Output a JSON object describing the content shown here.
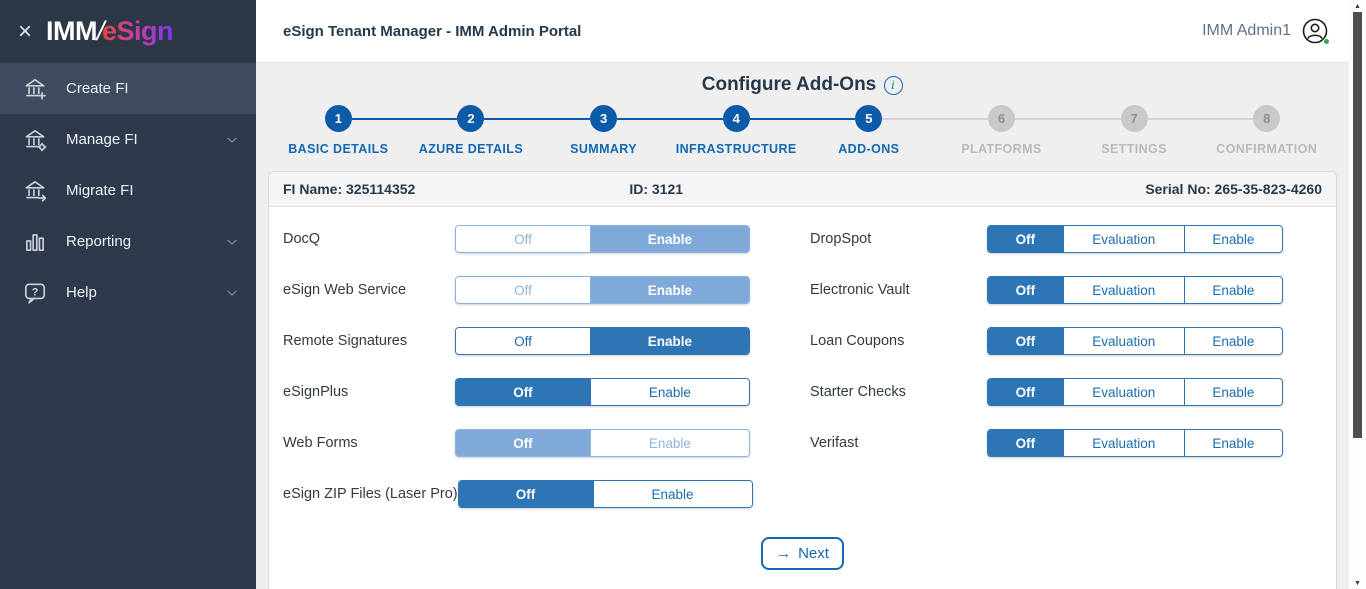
{
  "colors": {
    "accent_blue": "#1268b3",
    "toggle_selected_blue": "#2e75b6",
    "toggle_disabled_blue": "#7ea9d8",
    "sidebar_bg": "#2e3a4c",
    "sidebar_active_bg": "#3f4c60",
    "step_active": "#0d5ba8",
    "step_inactive": "#c9c9c9",
    "title_navy": "#26394a",
    "online_green": "#27ae4e",
    "logo_gradient": [
      "#ea4444",
      "#7a35f0"
    ]
  },
  "sidebar": {
    "close_icon": "×",
    "logo": {
      "imm": "IMM",
      "slash": "/",
      "esign": "eSign"
    },
    "items": [
      {
        "label": "Create FI",
        "icon": "bank-plus-icon",
        "active": true,
        "chevron": false
      },
      {
        "label": "Manage FI",
        "icon": "bank-gear-icon",
        "active": false,
        "chevron": true
      },
      {
        "label": "Migrate FI",
        "icon": "bank-arrow-icon",
        "active": false,
        "chevron": false
      },
      {
        "label": "Reporting",
        "icon": "bar-chart-icon",
        "active": false,
        "chevron": true
      },
      {
        "label": "Help",
        "icon": "help-bubble-icon",
        "active": false,
        "chevron": true
      }
    ]
  },
  "header": {
    "title": "eSign Tenant Manager - IMM Admin Portal",
    "user_name": "IMM Admin1"
  },
  "page": {
    "title": "Configure Add-Ons"
  },
  "stepper": [
    {
      "num": "1",
      "label": "BASIC DETAILS",
      "state": "active"
    },
    {
      "num": "2",
      "label": "AZURE DETAILS",
      "state": "active"
    },
    {
      "num": "3",
      "label": "SUMMARY",
      "state": "active"
    },
    {
      "num": "4",
      "label": "INFRASTRUCTURE",
      "state": "active"
    },
    {
      "num": "5",
      "label": "ADD-ONS",
      "state": "active"
    },
    {
      "num": "6",
      "label": "PLATFORMS",
      "state": "pending"
    },
    {
      "num": "7",
      "label": "SETTINGS",
      "state": "pending"
    },
    {
      "num": "8",
      "label": "CONFIRMATION",
      "state": "pending"
    }
  ],
  "fi_info": {
    "fi_name": "FI Name: 325114352",
    "fi_id": "ID: 3121",
    "serial": "Serial No: 265-35-823-4260"
  },
  "addons": {
    "left_column": [
      {
        "label": "DocQ",
        "disabled": true,
        "options": [
          {
            "label": "Off",
            "selected": false
          },
          {
            "label": "Enable",
            "selected": true
          }
        ]
      },
      {
        "label": "eSign Web Service",
        "disabled": true,
        "options": [
          {
            "label": "Off",
            "selected": false
          },
          {
            "label": "Enable",
            "selected": true
          }
        ]
      },
      {
        "label": "Remote Signatures",
        "disabled": false,
        "options": [
          {
            "label": "Off",
            "selected": false
          },
          {
            "label": "Enable",
            "selected": true
          }
        ]
      },
      {
        "label": "eSignPlus",
        "disabled": false,
        "options": [
          {
            "label": "Off",
            "selected": true
          },
          {
            "label": "Enable",
            "selected": false
          }
        ]
      },
      {
        "label": "Web Forms",
        "disabled": true,
        "options": [
          {
            "label": "Off",
            "selected": true
          },
          {
            "label": "Enable",
            "selected": false
          }
        ]
      },
      {
        "label": "eSign ZIP Files (Laser Pro)",
        "disabled": false,
        "options": [
          {
            "label": "Off",
            "selected": true
          },
          {
            "label": "Enable",
            "selected": false
          }
        ]
      }
    ],
    "right_column": [
      {
        "label": "DropSpot",
        "disabled": false,
        "options": [
          {
            "label": "Off",
            "selected": true
          },
          {
            "label": "Evaluation",
            "selected": false
          },
          {
            "label": "Enable",
            "selected": false
          }
        ]
      },
      {
        "label": "Electronic Vault",
        "disabled": false,
        "options": [
          {
            "label": "Off",
            "selected": true
          },
          {
            "label": "Evaluation",
            "selected": false
          },
          {
            "label": "Enable",
            "selected": false
          }
        ]
      },
      {
        "label": "Loan Coupons",
        "disabled": false,
        "options": [
          {
            "label": "Off",
            "selected": true
          },
          {
            "label": "Evaluation",
            "selected": false
          },
          {
            "label": "Enable",
            "selected": false
          }
        ]
      },
      {
        "label": "Starter Checks",
        "disabled": false,
        "options": [
          {
            "label": "Off",
            "selected": true
          },
          {
            "label": "Evaluation",
            "selected": false
          },
          {
            "label": "Enable",
            "selected": false
          }
        ]
      },
      {
        "label": "Verifast",
        "disabled": false,
        "options": [
          {
            "label": "Off",
            "selected": true
          },
          {
            "label": "Evaluation",
            "selected": false
          },
          {
            "label": "Enable",
            "selected": false
          }
        ]
      }
    ]
  },
  "next_button": {
    "arrow": "→",
    "label": "Next"
  }
}
